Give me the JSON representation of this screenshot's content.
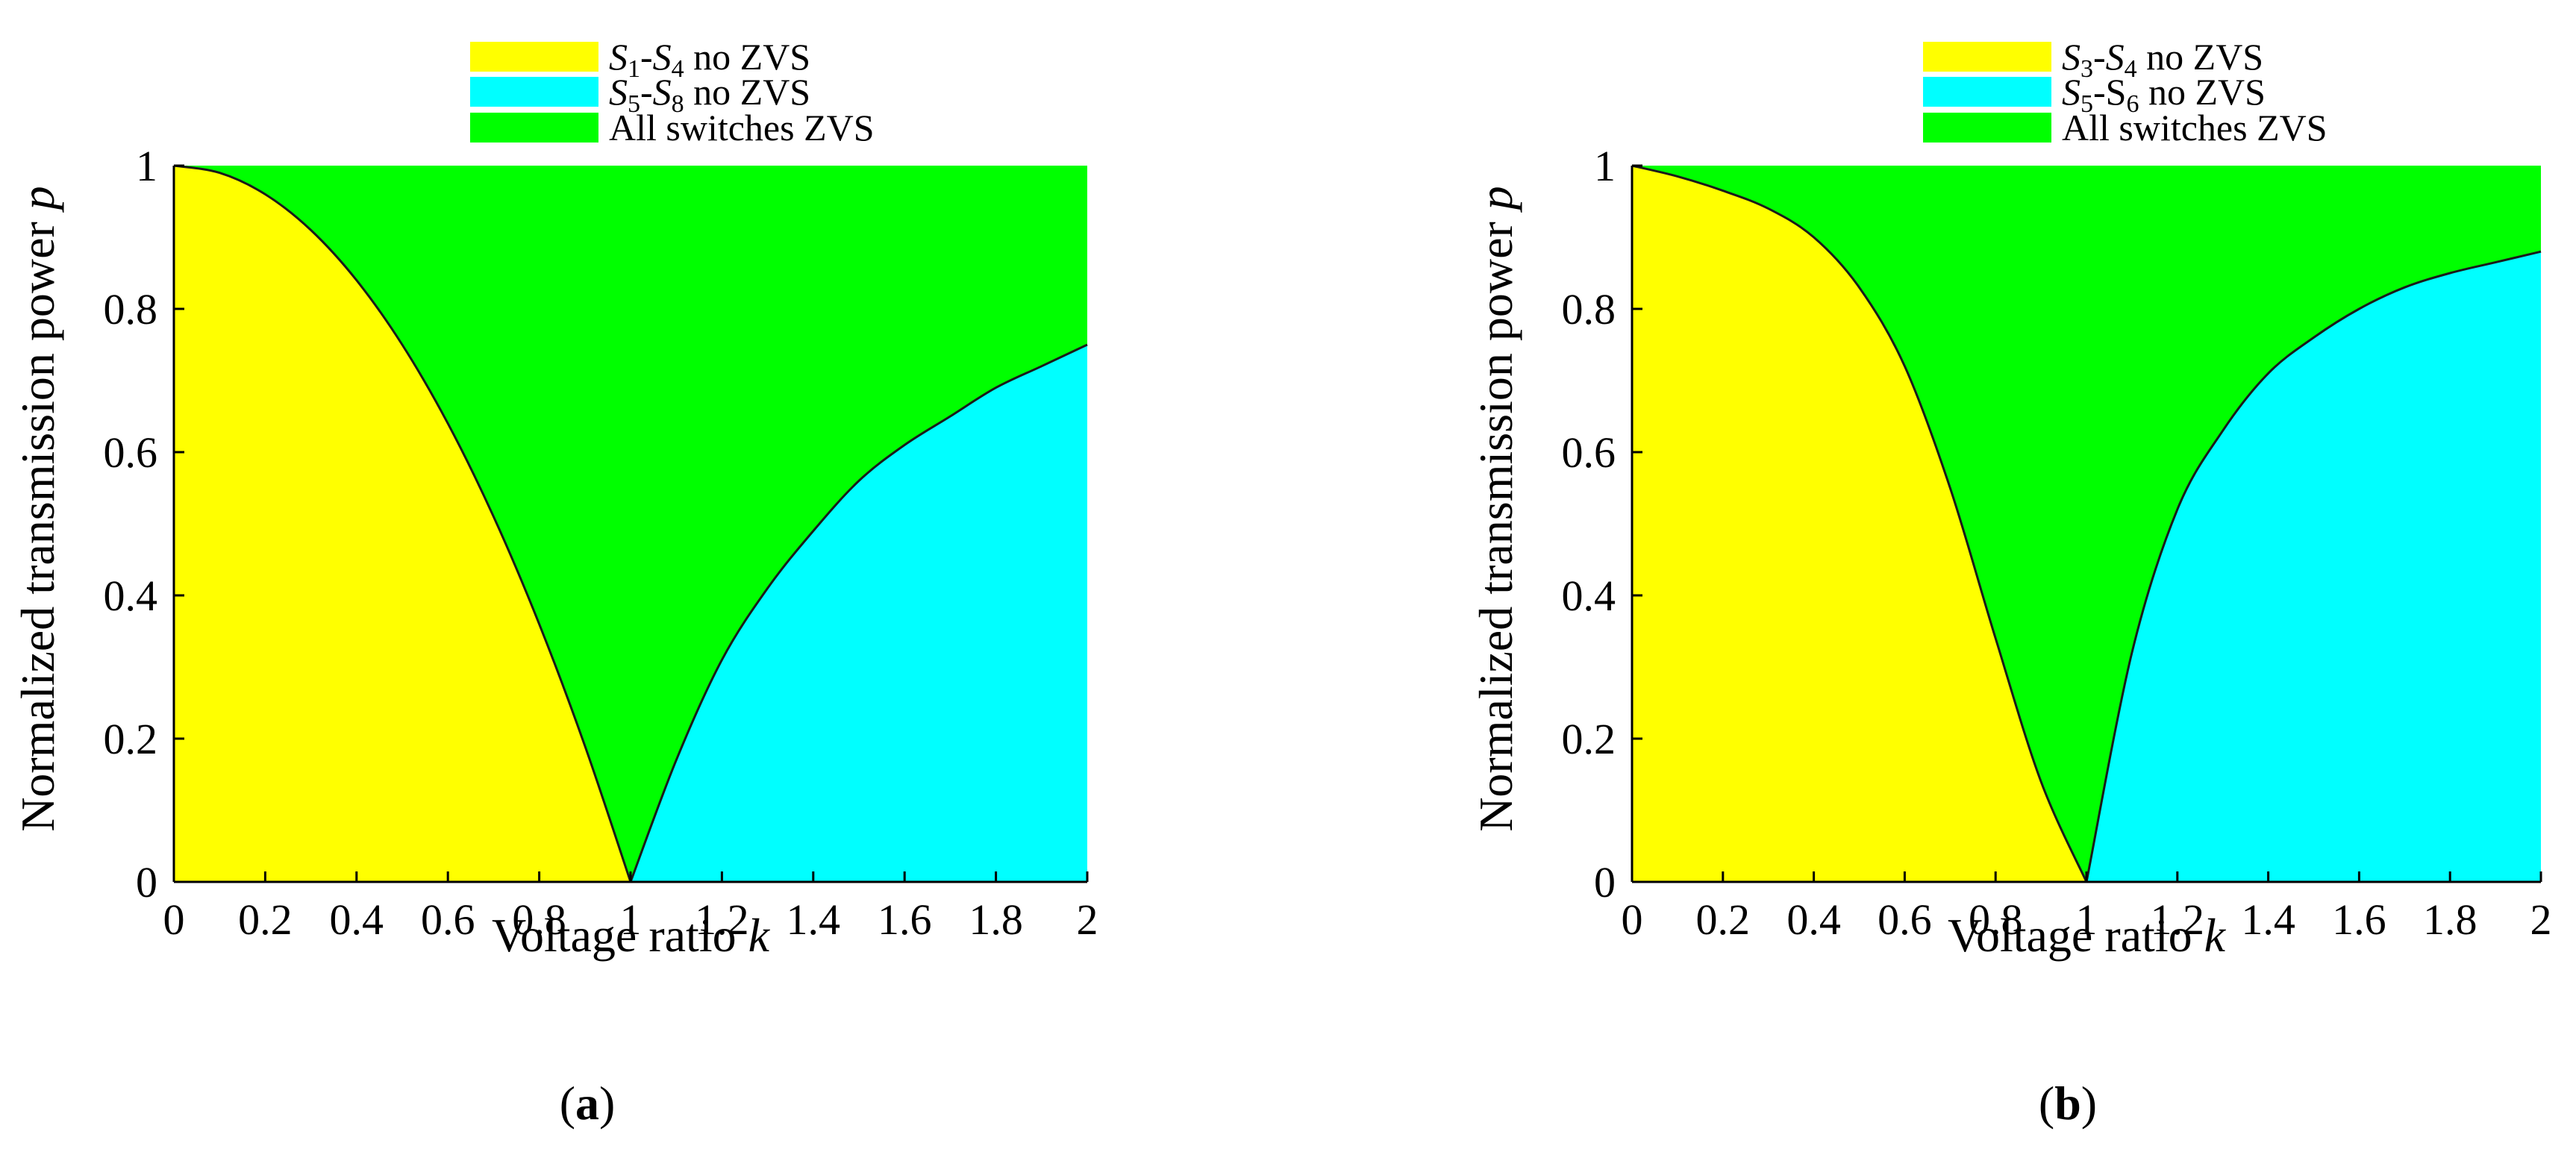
{
  "chart_data": [
    {
      "type": "area",
      "panel_label": "a",
      "xlabel": "Voltage ratio",
      "xlabel_var": "k",
      "ylabel": "Normalized transmission power",
      "ylabel_var": "p",
      "xlim": [
        0,
        2
      ],
      "ylim": [
        0,
        1
      ],
      "x_ticks": [
        "0",
        "0.2",
        "0.4",
        "0.6",
        "0.8",
        "1",
        "1.2",
        "1.4",
        "1.6",
        "1.8",
        "2"
      ],
      "y_ticks": [
        "0",
        "0.2",
        "0.4",
        "0.6",
        "0.8",
        "1"
      ],
      "grid": false,
      "legend_position": "top",
      "legend": [
        {
          "sym1": "S",
          "sub1": "1",
          "sep": "-",
          "sym2": "S",
          "sub2": "4",
          "rest": " no ZVS",
          "color": "#ffff00"
        },
        {
          "sym1": "S",
          "sub1": "5",
          "sep": "-",
          "sym2": "S",
          "sub2": "8",
          "rest": " no ZVS",
          "color": "#00ffff"
        },
        {
          "text": "All switches ZVS",
          "color": "#00ff00"
        }
      ],
      "background_region": {
        "name": "All switches ZVS",
        "color": "#00ff00"
      },
      "series": [
        {
          "name": "S1-S4 no ZVS",
          "color": "#ffff00",
          "x": [
            0,
            0.1,
            0.2,
            0.3,
            0.4,
            0.5,
            0.6,
            0.7,
            0.8,
            0.9,
            1.0
          ],
          "y": [
            1.0,
            0.99,
            0.96,
            0.91,
            0.84,
            0.75,
            0.64,
            0.51,
            0.36,
            0.19,
            0.0
          ]
        },
        {
          "name": "S5-S8 no ZVS",
          "color": "#00ffff",
          "x": [
            1.0,
            1.1,
            1.2,
            1.3,
            1.4,
            1.5,
            1.6,
            1.7,
            1.8,
            1.9,
            2.0
          ],
          "y": [
            0.0,
            0.17,
            0.31,
            0.41,
            0.49,
            0.56,
            0.61,
            0.65,
            0.69,
            0.72,
            0.75
          ]
        }
      ]
    },
    {
      "type": "area",
      "panel_label": "b",
      "xlabel": "Voltage ratio",
      "xlabel_var": "k",
      "ylabel": "Normalized transmission power",
      "ylabel_var": "p",
      "xlim": [
        0,
        2
      ],
      "ylim": [
        0,
        1
      ],
      "x_ticks": [
        "0",
        "0.2",
        "0.4",
        "0.6",
        "0.8",
        "1",
        "1.2",
        "1.4",
        "1.6",
        "1.8",
        "2"
      ],
      "y_ticks": [
        "0",
        "0.2",
        "0.4",
        "0.6",
        "0.8",
        "1"
      ],
      "grid": false,
      "legend_position": "top",
      "legend": [
        {
          "sym1": "S",
          "sub1": "3",
          "sep": "-",
          "sym2": "S",
          "sub2": "4",
          "rest": " no ZVS",
          "color": "#ffff00"
        },
        {
          "sym1": "S",
          "sub1": "5",
          "sep": "-S",
          "sym2": "",
          "sub2": "6",
          "rest": " no ZVS",
          "color": "#00ffff"
        },
        {
          "text": "All switches ZVS",
          "color": "#00ff00"
        }
      ],
      "background_region": {
        "name": "All switches ZVS",
        "color": "#00ff00"
      },
      "series": [
        {
          "name": "S3-S4 no ZVS",
          "color": "#ffff00",
          "x": [
            0,
            0.1,
            0.2,
            0.3,
            0.4,
            0.5,
            0.6,
            0.7,
            0.8,
            0.9,
            1.0
          ],
          "y": [
            1.0,
            0.985,
            0.965,
            0.94,
            0.9,
            0.83,
            0.72,
            0.55,
            0.34,
            0.14,
            0.0
          ]
        },
        {
          "name": "S5-S6 no ZVS",
          "color": "#00ffff",
          "x": [
            1.0,
            1.1,
            1.2,
            1.3,
            1.4,
            1.5,
            1.6,
            1.7,
            1.8,
            1.9,
            2.0
          ],
          "y": [
            0.0,
            0.32,
            0.52,
            0.63,
            0.71,
            0.76,
            0.8,
            0.83,
            0.85,
            0.865,
            0.88
          ]
        }
      ]
    }
  ]
}
